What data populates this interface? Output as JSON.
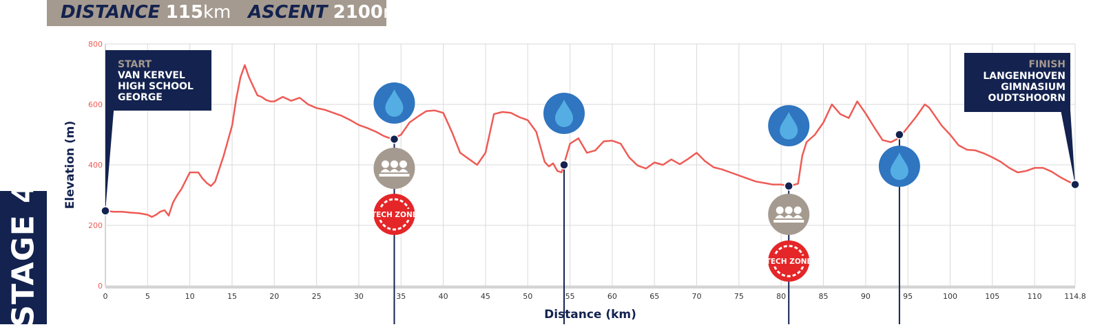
{
  "header": {
    "distance_label": "DISTANCE",
    "distance_value": "115",
    "distance_unit": "km",
    "ascent_label": "ASCENT",
    "ascent_value": "2100",
    "ascent_unit": "m"
  },
  "stage_label": "STAGE 4",
  "start_sign": {
    "title": "START",
    "lines": [
      "VAN KERVEL",
      "HIGH SCHOOL",
      "GEORGE"
    ]
  },
  "finish_sign": {
    "title": "FINISH",
    "lines": [
      "LANGENHOVEN",
      "GIMNASIUM",
      "OUDTSHOORN"
    ]
  },
  "tech_zone_label": "TECH ZONE",
  "colors": {
    "navy": "#13224f",
    "profile": "#ee5b55",
    "water": "#2f75c0",
    "water_drop": "#54aee3",
    "supporters": "#a59a8f",
    "tech": "#e42628",
    "tick": "#ee5b55"
  },
  "chart_data": {
    "type": "line",
    "xlabel": "Distance (km)",
    "ylabel": "Elevation (m)",
    "xlim": [
      0,
      114.8
    ],
    "ylim": [
      0,
      800
    ],
    "grid": true,
    "x_ticks": [
      0,
      5,
      10,
      15,
      20,
      25,
      30,
      35,
      40,
      45,
      50,
      55,
      60,
      65,
      70,
      75,
      80,
      85,
      90,
      95,
      100,
      105,
      110,
      114.8
    ],
    "y_ticks": [
      0,
      200,
      400,
      600,
      800
    ],
    "series": [
      {
        "x": [
          0,
          1,
          2,
          3,
          4,
          5,
          5.5,
          6,
          6.5,
          7,
          7.5,
          8,
          8.5,
          9,
          10,
          11,
          11.5,
          12,
          12.5,
          13,
          14,
          15,
          15.5,
          16,
          16.5,
          17,
          17.5,
          18,
          18.5,
          19,
          19.5,
          20,
          21,
          22,
          23,
          24,
          25,
          26,
          27,
          28,
          29,
          30,
          31,
          32,
          33,
          34,
          35,
          36,
          37,
          38,
          39,
          40,
          41,
          42,
          43,
          44,
          45,
          46,
          47,
          48,
          49,
          50,
          51,
          52,
          52.5,
          53,
          53.5,
          54,
          55,
          56,
          57,
          58,
          59,
          60,
          61,
          62,
          63,
          64,
          65,
          66,
          67,
          68,
          69,
          70,
          71,
          72,
          73,
          74,
          75,
          76,
          77,
          78,
          79,
          80,
          81,
          82,
          82.5,
          83,
          84,
          85,
          86,
          87,
          88,
          89,
          90,
          91,
          92,
          93,
          94,
          95,
          96,
          97,
          97.5,
          98,
          99,
          100,
          101,
          102,
          103,
          104,
          105,
          106,
          107,
          108,
          109,
          110,
          111,
          112,
          113,
          114,
          114.8
        ],
        "y": [
          248,
          245,
          245,
          242,
          240,
          235,
          228,
          235,
          245,
          250,
          232,
          275,
          300,
          320,
          375,
          375,
          355,
          340,
          330,
          345,
          430,
          530,
          620,
          690,
          730,
          690,
          660,
          630,
          625,
          615,
          610,
          610,
          625,
          612,
          622,
          600,
          588,
          582,
          572,
          562,
          548,
          532,
          522,
          510,
          495,
          485,
          500,
          540,
          560,
          578,
          580,
          572,
          510,
          440,
          420,
          400,
          440,
          568,
          575,
          572,
          558,
          548,
          510,
          410,
          395,
          405,
          380,
          375,
          470,
          488,
          440,
          448,
          478,
          480,
          470,
          425,
          398,
          388,
          408,
          400,
          418,
          402,
          420,
          440,
          412,
          392,
          385,
          375,
          365,
          355,
          345,
          340,
          335,
          335,
          330,
          338,
          430,
          475,
          500,
          540,
          600,
          568,
          555,
          610,
          570,
          525,
          482,
          475,
          490,
          525,
          560,
          600,
          590,
          570,
          530,
          500,
          465,
          450,
          448,
          438,
          425,
          410,
          390,
          375,
          380,
          390,
          390,
          378,
          360,
          345,
          335
        ]
      }
    ],
    "markers": [
      {
        "x": 0,
        "y": 248,
        "kind": "start"
      },
      {
        "x": 34.2,
        "y": 485,
        "kind": "station",
        "icons": [
          "water",
          "supporters",
          "tech"
        ]
      },
      {
        "x": 54.3,
        "y": 400,
        "kind": "station",
        "icons": [
          "water"
        ]
      },
      {
        "x": 80.9,
        "y": 330,
        "kind": "station",
        "icons": [
          "water",
          "supporters",
          "tech"
        ]
      },
      {
        "x": 94,
        "y": 500,
        "kind": "station",
        "icons": [
          "water"
        ]
      },
      {
        "x": 114.8,
        "y": 335,
        "kind": "finish"
      }
    ]
  }
}
